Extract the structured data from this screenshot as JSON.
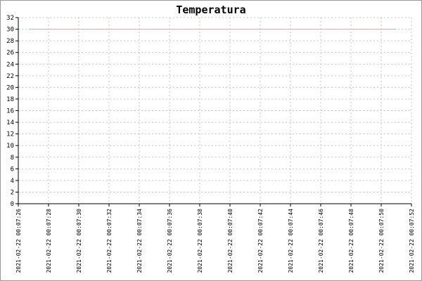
{
  "chart_data": {
    "type": "line",
    "title": "Temperatura",
    "xlabel": "",
    "ylabel": "",
    "ylim": [
      0,
      32
    ],
    "yticks": [
      0,
      2,
      4,
      6,
      8,
      10,
      12,
      14,
      16,
      18,
      20,
      22,
      24,
      26,
      28,
      30,
      32
    ],
    "xlim": [
      "2021-02-22 00:07:26",
      "2021-02-22 00:07:52"
    ],
    "xticks": [
      "2021-02-22 00:07:26",
      "2021-02-22 00:07:28",
      "2021-02-22 00:07:30",
      "2021-02-22 00:07:32",
      "2021-02-22 00:07:34",
      "2021-02-22 00:07:36",
      "2021-02-22 00:07:38",
      "2021-02-22 00:07:40",
      "2021-02-22 00:07:42",
      "2021-02-22 00:07:44",
      "2021-02-22 00:07:46",
      "2021-02-22 00:07:48",
      "2021-02-22 00:07:50",
      "2021-02-22 00:07:52"
    ],
    "grid": true,
    "series": [
      {
        "color": "#8cc8d8",
        "x": [
          "2021-02-22 00:07:26.7",
          "2021-02-22 00:07:51.0"
        ],
        "y": [
          30,
          30
        ]
      }
    ]
  }
}
